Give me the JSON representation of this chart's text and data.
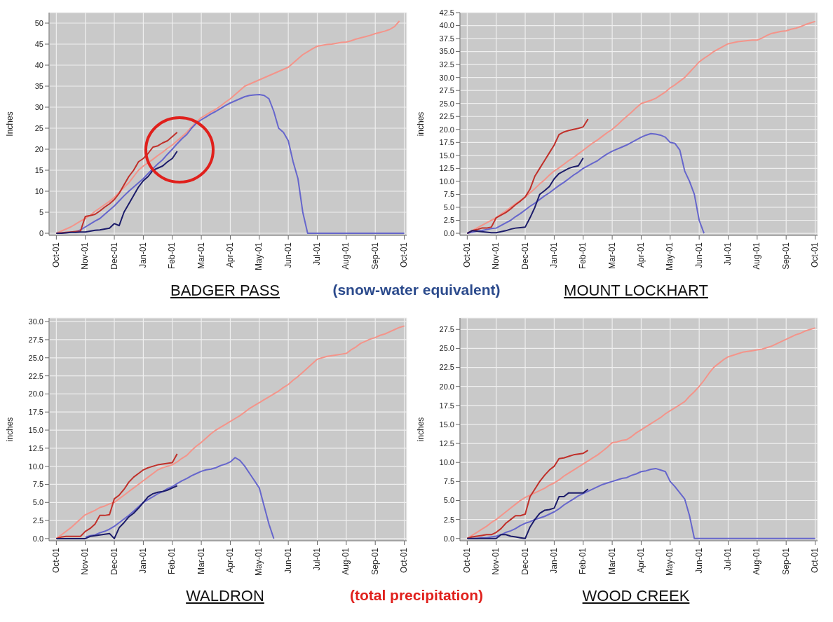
{
  "chart_data": [
    {
      "type": "line",
      "title": "BADGER PASS",
      "ylabel": "Inches",
      "annotations": [
        "(snow-water equivalent)"
      ],
      "grid": true,
      "ylim": [
        -0.5,
        52.5
      ],
      "yticks": [
        0,
        5,
        10,
        15,
        20,
        25,
        30,
        35,
        40,
        45,
        50
      ],
      "categories": [
        "Oct-01",
        null,
        null,
        null,
        null,
        null,
        "Nov-01",
        null,
        null,
        null,
        null,
        null,
        "Dec-01",
        null,
        null,
        null,
        null,
        null,
        "Jan-01",
        null,
        null,
        null,
        null,
        null,
        "Feb-01",
        null,
        null,
        null,
        null,
        null,
        "Mar-01",
        null,
        null,
        null,
        null,
        null,
        "Apr-01",
        null,
        null,
        null,
        null,
        null,
        "May-01",
        null,
        null,
        null,
        null,
        null,
        "Jun-01",
        null,
        null,
        null,
        null,
        null,
        "Jul-01",
        null,
        null,
        null,
        null,
        null,
        "Aug-01",
        null,
        null,
        null,
        null,
        null,
        "Sep-01",
        null,
        null,
        null,
        null,
        null,
        "Oct-01"
      ],
      "series": [
        {
          "color": "#f4948a",
          "values": [
            0,
            0.5,
            1,
            1.5,
            2.2,
            2.9,
            3.5,
            4.3,
            5.2,
            6,
            6.8,
            7.6,
            8.5,
            9.7,
            10.9,
            12,
            13.5,
            15,
            16,
            16.8,
            17.6,
            18.5,
            19.3,
            20.2,
            21,
            22,
            23,
            24,
            25.3,
            26.5,
            27.5,
            28.2,
            28.9,
            29.5,
            30.3,
            31.2,
            32,
            33,
            34,
            35,
            35.5,
            36,
            36.5,
            37,
            37.5,
            38,
            38.5,
            39,
            39.5,
            40.5,
            41.5,
            42.5,
            43.2,
            43.9,
            44.5,
            44.7,
            44.9,
            45,
            45.2,
            45.4,
            45.5,
            45.8,
            46.2,
            46.5,
            46.8,
            47.1,
            47.5,
            47.8,
            48.1,
            48.5,
            49.2,
            50.5,
            null
          ]
        },
        {
          "color": "#6666cc",
          "values": [
            null,
            null,
            null,
            null,
            0.3,
            0.8,
            1.5,
            2.2,
            2.9,
            3.5,
            4.5,
            5.5,
            6.5,
            7.7,
            8.9,
            10,
            11,
            12,
            13,
            14.2,
            15.4,
            16.5,
            17.5,
            18.8,
            20,
            21.3,
            22.5,
            23.5,
            25,
            26.2,
            27,
            27.7,
            28.4,
            29,
            29.7,
            30.4,
            31,
            31.5,
            32,
            32.5,
            32.8,
            32.9,
            33,
            32.8,
            32,
            29,
            25,
            24,
            22,
            17,
            13,
            5,
            0,
            0,
            0,
            0,
            0,
            0,
            0,
            0,
            0,
            0,
            0,
            0,
            0,
            0,
            0,
            0,
            0,
            0,
            0,
            0,
            0
          ]
        },
        {
          "color": "#c0302a",
          "values": [
            0,
            0.1,
            0.2,
            0.3,
            0.4,
            0.5,
            4,
            4.2,
            4.5,
            5.3,
            6.2,
            7,
            8,
            9.5,
            11.5,
            13.5,
            15,
            17,
            17.8,
            19,
            20.5,
            20.8,
            21.5,
            22,
            23,
            24,
            null,
            null,
            null,
            null,
            null,
            null,
            null,
            null,
            null,
            null,
            null,
            null,
            null,
            null,
            null,
            null,
            null,
            null,
            null,
            null,
            null,
            null,
            null,
            null,
            null,
            null,
            null,
            null,
            null,
            null,
            null,
            null,
            null,
            null,
            null,
            null,
            null,
            null,
            null,
            null,
            null,
            null,
            null,
            null,
            null,
            null,
            null
          ]
        },
        {
          "color": "#1c1c6a",
          "values": [
            0,
            0,
            0.1,
            0.2,
            0.2,
            0.3,
            0.3,
            0.5,
            0.7,
            0.8,
            1,
            1.2,
            2.3,
            1.8,
            5,
            7,
            9,
            11,
            12.5,
            13.5,
            15,
            15.5,
            16,
            17,
            17.8,
            19.5,
            null,
            null,
            null,
            null,
            null,
            null,
            null,
            null,
            null,
            null,
            null,
            null,
            null,
            null,
            null,
            null,
            null,
            null,
            null,
            null,
            null,
            null,
            null,
            null,
            null,
            null,
            null,
            null,
            null,
            null,
            null,
            null,
            null,
            null,
            null,
            null,
            null,
            null,
            null,
            null,
            null,
            null,
            null,
            null,
            null,
            null,
            null
          ]
        }
      ]
    },
    {
      "type": "line",
      "title": "MOUNT LOCKHART",
      "ylabel": "inches",
      "grid": true,
      "ylim": [
        -0.4,
        42.5
      ],
      "yticks": [
        {
          "value": 0,
          "label": "0.0"
        },
        {
          "value": 2.5,
          "label": "2.5"
        },
        {
          "value": 5,
          "label": "5.0"
        },
        {
          "value": 7.5,
          "label": "7.5"
        },
        {
          "value": 10,
          "label": "10.0"
        },
        {
          "value": 12.5,
          "label": "12.5"
        },
        {
          "value": 15,
          "label": "15.0"
        },
        {
          "value": 17.5,
          "label": "17.5"
        },
        {
          "value": 20,
          "label": "20.0"
        },
        {
          "value": 22.5,
          "label": "22.5"
        },
        {
          "value": 25,
          "label": "25.0"
        },
        {
          "value": 27.5,
          "label": "27.5"
        },
        {
          "value": 30,
          "label": "30.0"
        },
        {
          "value": 32.5,
          "label": "32.5"
        },
        {
          "value": 35,
          "label": "35.0"
        },
        {
          "value": 37.5,
          "label": "37.5"
        },
        {
          "value": 40,
          "label": "40.0"
        },
        {
          "value": 42.5,
          "label": "42.5"
        }
      ],
      "categories": [
        "Oct-01",
        null,
        null,
        null,
        null,
        null,
        "Nov-01",
        null,
        null,
        null,
        null,
        null,
        "Dec-01",
        null,
        null,
        null,
        null,
        null,
        "Jan-01",
        null,
        null,
        null,
        null,
        null,
        "Feb-01",
        null,
        null,
        null,
        null,
        null,
        "Mar-01",
        null,
        null,
        null,
        null,
        null,
        "Apr-01",
        null,
        null,
        null,
        null,
        null,
        "May-01",
        null,
        null,
        null,
        null,
        null,
        "Jun-01",
        null,
        null,
        null,
        null,
        null,
        "Jul-01",
        null,
        null,
        null,
        null,
        null,
        "Aug-01",
        null,
        null,
        null,
        null,
        null,
        "Sep-01",
        null,
        null,
        null,
        null,
        null,
        "Oct-01"
      ],
      "series": [
        {
          "color": "#f4948a",
          "values": [
            0,
            0.5,
            1,
            1.5,
            2,
            2.5,
            3,
            3.7,
            4.3,
            5,
            5.7,
            6.3,
            7,
            7.8,
            8.6,
            9.5,
            10.3,
            11.2,
            12,
            12.6,
            13.3,
            14,
            14.6,
            15.3,
            16,
            16.7,
            17.4,
            18,
            18.7,
            19.4,
            20,
            20.8,
            21.7,
            22.5,
            23.3,
            24.2,
            25,
            25.3,
            25.6,
            26,
            26.6,
            27.2,
            28,
            28.6,
            29.3,
            30,
            31,
            32,
            33,
            33.7,
            34.3,
            35,
            35.5,
            36,
            36.5,
            36.7,
            36.9,
            37,
            37.1,
            37.2,
            37.2,
            37.6,
            38.1,
            38.5,
            38.7,
            38.9,
            39,
            39.3,
            39.5,
            39.8,
            40.2,
            40.5,
            40.8
          ]
        },
        {
          "color": "#6666cc",
          "values": [
            0,
            0.2,
            0.4,
            0.5,
            0.7,
            0.9,
            1,
            1.5,
            2,
            2.5,
            3.2,
            3.8,
            4.5,
            5.2,
            5.8,
            6.5,
            7.2,
            7.8,
            8.5,
            9.2,
            9.8,
            10.5,
            11.2,
            11.8,
            12.5,
            13,
            13.5,
            14,
            14.7,
            15.3,
            15.8,
            16.2,
            16.6,
            17,
            17.5,
            18,
            18.5,
            18.9,
            19.2,
            19.1,
            18.9,
            18.5,
            17.5,
            17.3,
            16,
            12,
            10,
            7.5,
            2.5,
            0,
            null,
            null,
            null,
            null,
            null,
            null,
            null,
            null,
            null,
            null,
            null,
            null,
            null,
            null,
            null,
            null,
            null,
            null,
            null,
            null,
            null,
            null,
            null
          ]
        },
        {
          "color": "#c0302a",
          "values": [
            0,
            0.5,
            0.7,
            1,
            1,
            1.2,
            3,
            3.5,
            4,
            4.7,
            5.5,
            6.2,
            7,
            8.5,
            11,
            12.5,
            14,
            15.5,
            17,
            19,
            19.5,
            19.8,
            20,
            20.2,
            20.5,
            22,
            null,
            null,
            null,
            null,
            null,
            null,
            null,
            null,
            null,
            null,
            null,
            null,
            null,
            null,
            null,
            null,
            null,
            null,
            null,
            null,
            null,
            null,
            null,
            null,
            null,
            null,
            null,
            null,
            null,
            null,
            null,
            null,
            null,
            null,
            null,
            null,
            null,
            null,
            null,
            null,
            null,
            null,
            null,
            null,
            null,
            null,
            null
          ]
        },
        {
          "color": "#1c1c6a",
          "values": [
            0,
            0.5,
            0.4,
            0.3,
            0.2,
            0.1,
            0.1,
            0.3,
            0.5,
            0.8,
            1,
            1.1,
            1.2,
            3,
            5,
            7.5,
            8.2,
            9,
            10.5,
            11.5,
            12,
            12.5,
            12.8,
            13,
            14.5,
            null,
            null,
            null,
            null,
            null,
            null,
            null,
            null,
            null,
            null,
            null,
            null,
            null,
            null,
            null,
            null,
            null,
            null,
            null,
            null,
            null,
            null,
            null,
            null,
            null,
            null,
            null,
            null,
            null,
            null,
            null,
            null,
            null,
            null,
            null,
            null,
            null,
            null,
            null,
            null,
            null,
            null,
            null,
            null,
            null,
            null,
            null,
            null
          ]
        }
      ]
    },
    {
      "type": "line",
      "title": "WALDRON",
      "ylabel": "inches",
      "annotations": [
        "(total precipitation)"
      ],
      "grid": true,
      "ylim": [
        -0.3,
        30.5
      ],
      "yticks": [
        {
          "value": 0,
          "label": "0.0"
        },
        {
          "value": 2.5,
          "label": "2.5"
        },
        {
          "value": 5,
          "label": "5.0"
        },
        {
          "value": 7.5,
          "label": "7.5"
        },
        {
          "value": 10,
          "label": "10.0"
        },
        {
          "value": 12.5,
          "label": "12.5"
        },
        {
          "value": 15,
          "label": "15.0"
        },
        {
          "value": 17.5,
          "label": "17.5"
        },
        {
          "value": 20,
          "label": "20.0"
        },
        {
          "value": 22.5,
          "label": "22.5"
        },
        {
          "value": 25,
          "label": "25.0"
        },
        {
          "value": 27.5,
          "label": "27.5"
        },
        {
          "value": 30,
          "label": "30.0"
        }
      ],
      "categories": [
        "Oct-01",
        null,
        null,
        null,
        null,
        null,
        "Nov-01",
        null,
        null,
        null,
        null,
        null,
        "Dec-01",
        null,
        null,
        null,
        null,
        null,
        "Jan-01",
        null,
        null,
        null,
        null,
        null,
        "Feb-01",
        null,
        null,
        null,
        null,
        null,
        "Mar-01",
        null,
        null,
        null,
        null,
        null,
        "Apr-01",
        null,
        null,
        null,
        null,
        null,
        "May-01",
        null,
        null,
        null,
        null,
        null,
        "Jun-01",
        null,
        null,
        null,
        null,
        null,
        "Jul-01",
        null,
        null,
        null,
        null,
        null,
        "Aug-01",
        null,
        null,
        null,
        null,
        null,
        "Sep-01",
        null,
        null,
        null,
        null,
        null,
        "Oct-01"
      ],
      "series": [
        {
          "color": "#f4948a",
          "values": [
            0,
            0.5,
            1,
            1.5,
            2.1,
            2.7,
            3.3,
            3.6,
            3.9,
            4.3,
            4.5,
            4.8,
            5,
            5.5,
            6,
            6.5,
            7,
            7.5,
            8,
            8.5,
            9,
            9.5,
            9.8,
            10,
            10.2,
            10.6,
            11.1,
            11.5,
            12.2,
            12.8,
            13.3,
            13.9,
            14.5,
            15,
            15.4,
            15.8,
            16.2,
            16.6,
            17,
            17.5,
            18,
            18.4,
            18.8,
            19.2,
            19.6,
            20,
            20.4,
            20.9,
            21.3,
            21.9,
            22.4,
            23,
            23.6,
            24.2,
            24.8,
            25,
            25.2,
            25.3,
            25.4,
            25.5,
            25.6,
            26.1,
            26.5,
            27,
            27.3,
            27.6,
            27.8,
            28.1,
            28.3,
            28.6,
            28.9,
            29.2,
            29.4
          ]
        },
        {
          "color": "#6666cc",
          "values": [
            null,
            null,
            null,
            null,
            null,
            null,
            0.2,
            0.4,
            0.5,
            0.8,
            1,
            1.3,
            1.7,
            2.2,
            2.7,
            3.2,
            3.8,
            4.4,
            5,
            5.4,
            5.8,
            6.2,
            6.5,
            6.9,
            7.2,
            7.6,
            8,
            8.3,
            8.7,
            9,
            9.3,
            9.5,
            9.6,
            9.8,
            10.1,
            10.3,
            10.6,
            11.2,
            10.8,
            10,
            9,
            8,
            7,
            4.5,
            2,
            0,
            null,
            null,
            null,
            null,
            null,
            null,
            null,
            null,
            null,
            null,
            null,
            null,
            null,
            null,
            null,
            null,
            null,
            null,
            null,
            null,
            null,
            null,
            null,
            null,
            null,
            null,
            null
          ]
        },
        {
          "color": "#c0302a",
          "values": [
            0,
            0.2,
            0.3,
            0.3,
            0.3,
            0.3,
            1,
            1.4,
            2,
            3.2,
            3.2,
            3.3,
            5.5,
            6,
            6.8,
            7.8,
            8.5,
            9,
            9.5,
            9.8,
            10,
            10.2,
            10.3,
            10.4,
            10.5,
            11.7,
            null,
            null,
            null,
            null,
            null,
            null,
            null,
            null,
            null,
            null,
            null,
            null,
            null,
            null,
            null,
            null,
            null,
            null,
            null,
            null,
            null,
            null,
            null,
            null,
            null,
            null,
            null,
            null,
            null,
            null,
            null,
            null,
            null,
            null,
            null,
            null,
            null,
            null,
            null,
            null,
            null,
            null,
            null,
            null,
            null,
            null,
            null
          ]
        },
        {
          "color": "#1c1c6a",
          "values": [
            0,
            0,
            0,
            0,
            0,
            0,
            0,
            0.3,
            0.4,
            0.5,
            0.6,
            0.7,
            0,
            1.5,
            2.2,
            3,
            3.5,
            4.2,
            5,
            5.8,
            6.2,
            6.4,
            6.5,
            6.7,
            7,
            7.3,
            null,
            null,
            null,
            null,
            null,
            null,
            null,
            null,
            null,
            null,
            null,
            null,
            null,
            null,
            null,
            null,
            null,
            null,
            null,
            null,
            null,
            null,
            null,
            null,
            null,
            null,
            null,
            null,
            null,
            null,
            null,
            null,
            null,
            null,
            null,
            null,
            null,
            null,
            null,
            null,
            null,
            null,
            null,
            null,
            null,
            null,
            null
          ]
        }
      ]
    },
    {
      "type": "line",
      "title": "WOOD CREEK",
      "ylabel": "inches",
      "grid": true,
      "ylim": [
        -0.3,
        29
      ],
      "yticks": [
        {
          "value": 0,
          "label": "0.0"
        },
        {
          "value": 2.5,
          "label": "2.5"
        },
        {
          "value": 5,
          "label": "5.0"
        },
        {
          "value": 7.5,
          "label": "7.5"
        },
        {
          "value": 10,
          "label": "10.0"
        },
        {
          "value": 12.5,
          "label": "12.5"
        },
        {
          "value": 15,
          "label": "15.0"
        },
        {
          "value": 17.5,
          "label": "17.5"
        },
        {
          "value": 20,
          "label": "20.0"
        },
        {
          "value": 22.5,
          "label": "22.5"
        },
        {
          "value": 25,
          "label": "25.0"
        },
        {
          "value": 27.5,
          "label": "27.5"
        }
      ],
      "categories": [
        "Oct-01",
        null,
        null,
        null,
        null,
        null,
        "Nov-01",
        null,
        null,
        null,
        null,
        null,
        "Dec-01",
        null,
        null,
        null,
        null,
        null,
        "Jan-01",
        null,
        null,
        null,
        null,
        null,
        "Feb-01",
        null,
        null,
        null,
        null,
        null,
        "Mar-01",
        null,
        null,
        null,
        null,
        null,
        "Apr-01",
        null,
        null,
        null,
        null,
        null,
        "May-01",
        null,
        null,
        null,
        null,
        null,
        "Jun-01",
        null,
        null,
        null,
        null,
        null,
        "Jul-01",
        null,
        null,
        null,
        null,
        null,
        "Aug-01",
        null,
        null,
        null,
        null,
        null,
        "Sep-01",
        null,
        null,
        null,
        null,
        null,
        "Oct-01"
      ],
      "series": [
        {
          "color": "#f4948a",
          "values": [
            0,
            0.4,
            0.8,
            1.2,
            1.6,
            2.1,
            2.5,
            3,
            3.5,
            4,
            4.5,
            5,
            5.4,
            5.7,
            6,
            6.3,
            6.6,
            7,
            7.3,
            7.7,
            8.2,
            8.6,
            9,
            9.4,
            9.8,
            10.2,
            10.6,
            11,
            11.5,
            12,
            12.6,
            12.7,
            12.9,
            13,
            13.4,
            13.9,
            14.3,
            14.7,
            15.1,
            15.5,
            15.9,
            16.4,
            16.8,
            17.2,
            17.6,
            18,
            18.7,
            19.3,
            20,
            20.8,
            21.7,
            22.5,
            23,
            23.5,
            23.9,
            24.1,
            24.3,
            24.5,
            24.6,
            24.7,
            24.8,
            24.9,
            25.1,
            25.3,
            25.6,
            25.9,
            26.2,
            26.5,
            26.8,
            27,
            27.3,
            27.5,
            27.7
          ]
        },
        {
          "color": "#6666cc",
          "values": [
            0,
            0,
            0,
            0.1,
            0.1,
            0.2,
            0.3,
            0.5,
            0.8,
            1,
            1.3,
            1.7,
            2,
            2.2,
            2.5,
            2.7,
            2.9,
            3.2,
            3.5,
            3.9,
            4.4,
            4.8,
            5.2,
            5.6,
            5.9,
            6.2,
            6.5,
            6.8,
            7.1,
            7.3,
            7.5,
            7.7,
            7.9,
            8,
            8.3,
            8.5,
            8.8,
            8.9,
            9.1,
            9.2,
            9,
            8.8,
            7.5,
            6.8,
            6,
            5.2,
            3,
            0,
            0,
            0,
            0,
            0,
            0,
            0,
            0,
            0,
            0,
            0,
            0,
            0,
            0,
            0,
            0,
            0,
            0,
            0,
            0,
            0,
            0,
            0,
            0,
            0,
            0
          ]
        },
        {
          "color": "#c0302a",
          "values": [
            0,
            0.2,
            0.3,
            0.4,
            0.5,
            0.5,
            0.8,
            1.3,
            2,
            2.5,
            3,
            3,
            3.2,
            5.5,
            6.5,
            7.5,
            8.3,
            9,
            9.5,
            10.5,
            10.6,
            10.8,
            11,
            11.1,
            11.2,
            11.6,
            null,
            null,
            null,
            null,
            null,
            null,
            null,
            null,
            null,
            null,
            null,
            null,
            null,
            null,
            null,
            null,
            null,
            null,
            null,
            null,
            null,
            null,
            null,
            null,
            null,
            null,
            null,
            null,
            null,
            null,
            null,
            null,
            null,
            null,
            null,
            null,
            null,
            null,
            null,
            null,
            null,
            null,
            null,
            null,
            null,
            null,
            null
          ]
        },
        {
          "color": "#1c1c6a",
          "values": [
            0,
            0,
            0,
            0,
            0,
            0,
            0,
            0.5,
            0.5,
            0.3,
            0.2,
            0.1,
            0,
            1.5,
            2.5,
            3.3,
            3.7,
            3.8,
            4,
            5.5,
            5.5,
            6,
            6,
            6,
            6,
            6.5,
            null,
            null,
            null,
            null,
            null,
            null,
            null,
            null,
            null,
            null,
            null,
            null,
            null,
            null,
            null,
            null,
            null,
            null,
            null,
            null,
            null,
            null,
            null,
            null,
            null,
            null,
            null,
            null,
            null,
            null,
            null,
            null,
            null,
            null,
            null,
            null,
            null,
            null,
            null,
            null,
            null,
            null,
            null,
            null,
            null,
            null,
            null
          ]
        }
      ]
    }
  ]
}
